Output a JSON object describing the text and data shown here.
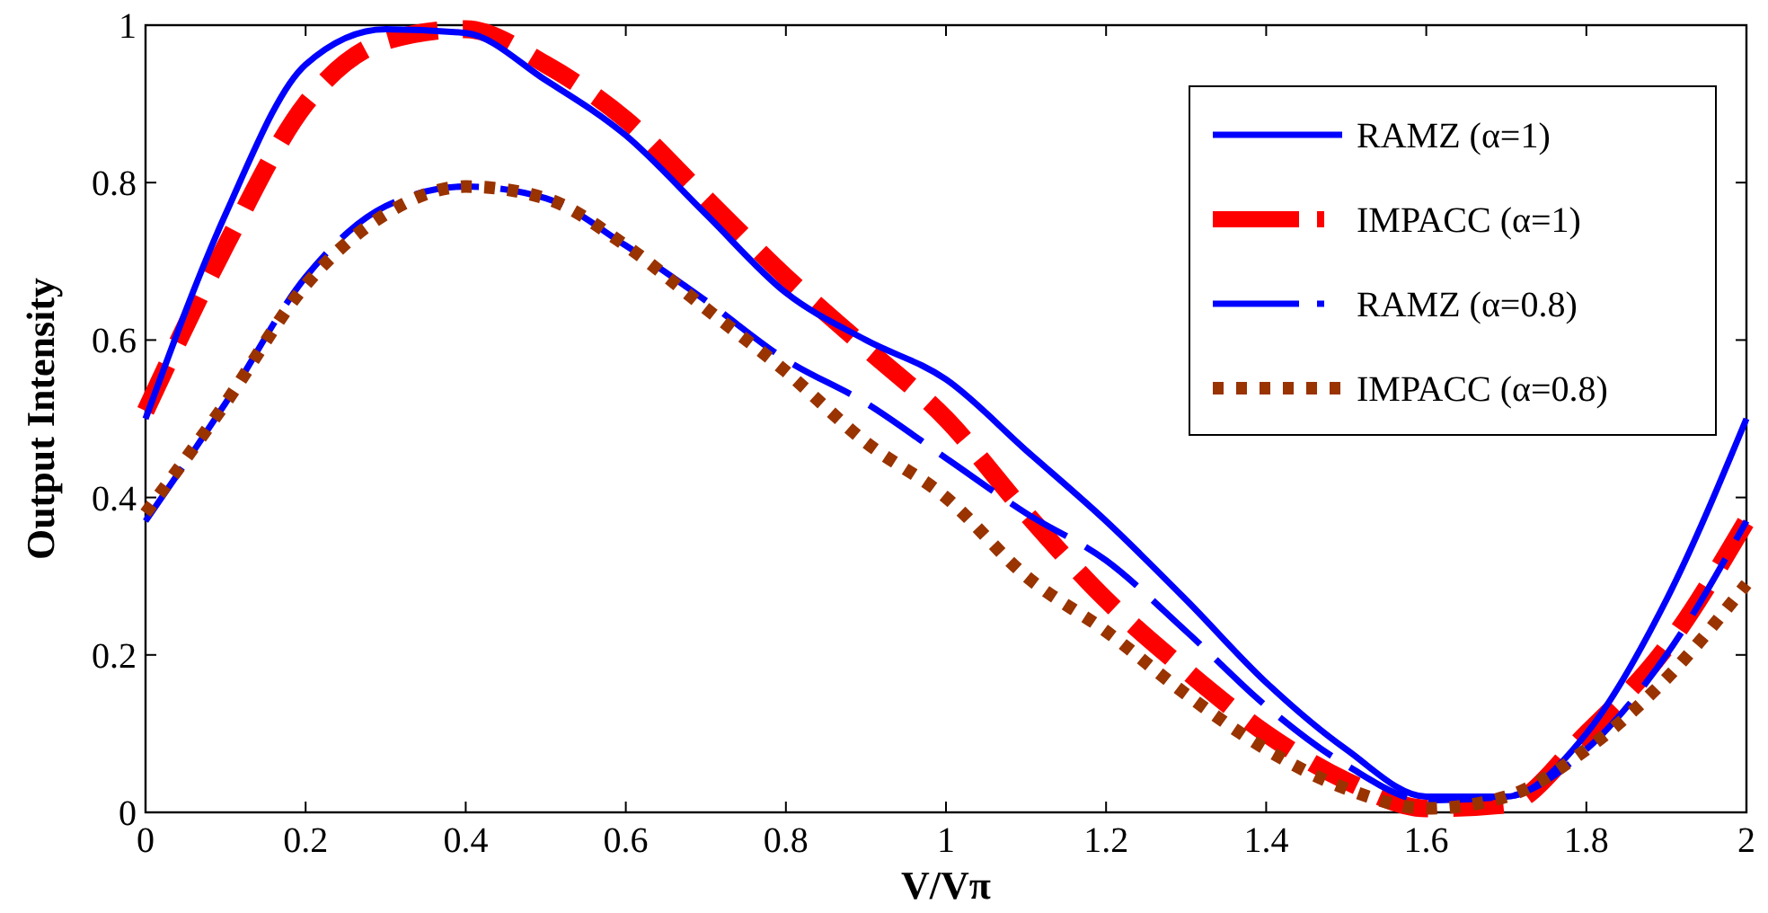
{
  "chart_data": {
    "type": "line",
    "xlabel": "V/Vπ",
    "ylabel": "Output Intensity",
    "x": [
      0,
      0.1,
      0.2,
      0.3,
      0.4,
      0.5,
      0.6,
      0.7,
      0.8,
      0.9,
      1.0,
      1.1,
      1.2,
      1.3,
      1.4,
      1.5,
      1.6,
      1.7,
      1.8,
      1.9,
      2.0
    ],
    "series": [
      {
        "name": "RAMZ (α=1)",
        "color": "#0000ff",
        "line_style": "solid",
        "values": [
          0.5,
          0.76,
          0.95,
          0.995,
          0.99,
          0.93,
          0.86,
          0.76,
          0.66,
          0.6,
          0.55,
          0.46,
          0.37,
          0.27,
          0.165,
          0.08,
          0.02,
          0.02,
          0.1,
          0.27,
          0.5
        ]
      },
      {
        "name": "IMPACC (α=1)",
        "color": "#ff0000",
        "line_style": "dashed",
        "values": [
          0.51,
          0.72,
          0.9,
          0.98,
          0.995,
          0.95,
          0.88,
          0.78,
          0.68,
          0.59,
          0.5,
          0.38,
          0.27,
          0.18,
          0.1,
          0.04,
          0.005,
          0.01,
          0.1,
          0.21,
          0.37
        ]
      },
      {
        "name": "RAMZ (α=0.8)",
        "color": "#0000ff",
        "line_style": "dashed",
        "values": [
          0.37,
          0.52,
          0.68,
          0.77,
          0.795,
          0.78,
          0.72,
          0.65,
          0.575,
          0.52,
          0.45,
          0.38,
          0.32,
          0.23,
          0.135,
          0.06,
          0.015,
          0.02,
          0.08,
          0.2,
          0.37
        ]
      },
      {
        "name": "IMPACC (α=0.8)",
        "color": "#993300",
        "line_style": "dotted",
        "values": [
          0.38,
          0.52,
          0.67,
          0.76,
          0.795,
          0.78,
          0.72,
          0.64,
          0.56,
          0.47,
          0.4,
          0.3,
          0.23,
          0.15,
          0.08,
          0.03,
          0.005,
          0.02,
          0.08,
          0.17,
          0.29
        ]
      }
    ],
    "xlim": [
      0,
      2
    ],
    "xticks": [
      0,
      0.2,
      0.4,
      0.6,
      0.8,
      1,
      1.2,
      1.4,
      1.6,
      1.8,
      2
    ],
    "ylim": [
      0,
      1
    ],
    "yticks": [
      0,
      0.2,
      0.4,
      0.6,
      0.8,
      1
    ],
    "grid": false,
    "legend": "top right"
  }
}
